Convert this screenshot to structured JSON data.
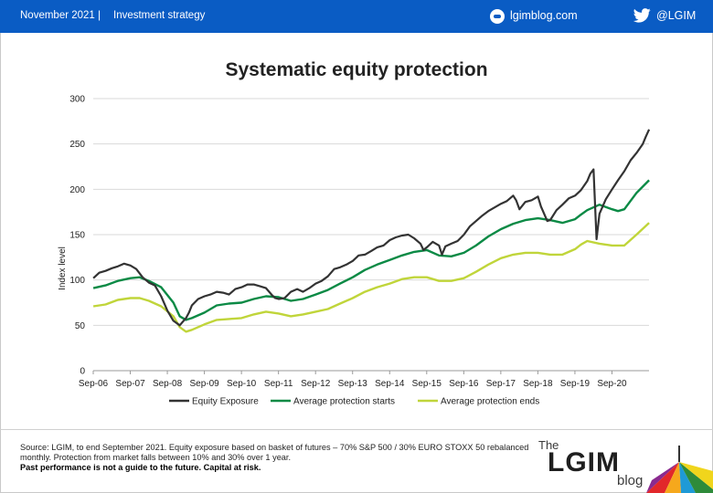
{
  "header": {
    "date": "November 2021",
    "separator": "|",
    "category": "Investment strategy",
    "site": "lgimblog.com",
    "twitter": "@LGIM",
    "background_color": "#0a5cc4",
    "site_icon": "globe-icon",
    "twitter_icon": "twitter-bird-icon"
  },
  "chart_data": {
    "type": "line",
    "title": "Systematic equity protection",
    "xlabel": "",
    "ylabel": "Index level",
    "ylim": [
      0,
      300
    ],
    "yticks": [
      0,
      50,
      100,
      150,
      200,
      250,
      300
    ],
    "xticks": [
      "Sep-06",
      "Sep-07",
      "Sep-08",
      "Sep-09",
      "Sep-10",
      "Sep-11",
      "Sep-12",
      "Sep-13",
      "Sep-14",
      "Sep-15",
      "Sep-16",
      "Sep-17",
      "Sep-18",
      "Sep-19",
      "Sep-20"
    ],
    "xrange": [
      2006.667,
      2021.667
    ],
    "grid": "horizontal",
    "legend_position": "bottom",
    "series": [
      {
        "name": "Equity Exposure",
        "color": "#333333",
        "x": [
          2006.67,
          2006.83,
          2007.0,
          2007.17,
          2007.33,
          2007.5,
          2007.67,
          2007.83,
          2008.0,
          2008.17,
          2008.33,
          2008.5,
          2008.67,
          2008.83,
          2009.0,
          2009.17,
          2009.25,
          2009.33,
          2009.5,
          2009.67,
          2009.83,
          2010.0,
          2010.17,
          2010.33,
          2010.5,
          2010.67,
          2010.83,
          2011.0,
          2011.17,
          2011.33,
          2011.5,
          2011.58,
          2011.67,
          2011.83,
          2012.0,
          2012.17,
          2012.33,
          2012.5,
          2012.67,
          2012.83,
          2013.0,
          2013.17,
          2013.33,
          2013.5,
          2013.67,
          2013.83,
          2014.0,
          2014.17,
          2014.33,
          2014.5,
          2014.67,
          2014.83,
          2015.0,
          2015.17,
          2015.33,
          2015.5,
          2015.58,
          2015.67,
          2015.83,
          2016.0,
          2016.08,
          2016.17,
          2016.33,
          2016.5,
          2016.67,
          2016.83,
          2017.0,
          2017.17,
          2017.33,
          2017.5,
          2017.67,
          2017.83,
          2018.0,
          2018.08,
          2018.17,
          2018.33,
          2018.5,
          2018.67,
          2018.75,
          2018.92,
          2019.0,
          2019.17,
          2019.33,
          2019.5,
          2019.67,
          2019.83,
          2020.0,
          2020.08,
          2020.17,
          2020.25,
          2020.33,
          2020.5,
          2020.67,
          2020.83,
          2021.0,
          2021.17,
          2021.33,
          2021.5,
          2021.58,
          2021.67
        ],
        "values": [
          102,
          108,
          110,
          113,
          115,
          118,
          116,
          112,
          103,
          97,
          94,
          82,
          66,
          55,
          50,
          58,
          64,
          72,
          79,
          82,
          84,
          87,
          86,
          84,
          90,
          92,
          95,
          95,
          93,
          91,
          83,
          80,
          79,
          80,
          87,
          90,
          87,
          91,
          96,
          99,
          104,
          112,
          114,
          117,
          121,
          127,
          128,
          132,
          136,
          138,
          144,
          147,
          149,
          150,
          146,
          140,
          133,
          136,
          142,
          138,
          128,
          137,
          140,
          143,
          150,
          159,
          165,
          171,
          176,
          180,
          184,
          187,
          193,
          188,
          178,
          186,
          188,
          192,
          181,
          165,
          166,
          177,
          183,
          190,
          193,
          199,
          209,
          217,
          222,
          145,
          173,
          189,
          200,
          210,
          220,
          232,
          240,
          250,
          258,
          266
        ]
      },
      {
        "name": "Average protection starts",
        "color": "#0b8a45",
        "x": [
          2006.67,
          2007.0,
          2007.33,
          2007.67,
          2007.92,
          2008.17,
          2008.5,
          2008.83,
          2009.0,
          2009.17,
          2009.33,
          2009.67,
          2010.0,
          2010.33,
          2010.67,
          2011.0,
          2011.33,
          2011.67,
          2012.0,
          2012.33,
          2012.67,
          2013.0,
          2013.33,
          2013.67,
          2014.0,
          2014.33,
          2014.67,
          2015.0,
          2015.33,
          2015.67,
          2016.0,
          2016.33,
          2016.67,
          2017.0,
          2017.33,
          2017.67,
          2018.0,
          2018.33,
          2018.67,
          2019.0,
          2019.33,
          2019.67,
          2019.83,
          2020.0,
          2020.33,
          2020.67,
          2020.83,
          2021.0,
          2021.33,
          2021.67
        ],
        "values": [
          91,
          94,
          99,
          102,
          103,
          99,
          92,
          75,
          60,
          56,
          58,
          64,
          72,
          74,
          75,
          79,
          82,
          81,
          77,
          79,
          84,
          89,
          96,
          103,
          111,
          117,
          122,
          127,
          131,
          133,
          127,
          126,
          130,
          138,
          148,
          156,
          162,
          166,
          168,
          166,
          163,
          167,
          172,
          177,
          183,
          178,
          176,
          178,
          196,
          210
        ]
      },
      {
        "name": "Average protection ends",
        "color": "#c0d53a",
        "x": [
          2006.67,
          2007.0,
          2007.33,
          2007.67,
          2007.92,
          2008.17,
          2008.5,
          2008.83,
          2009.0,
          2009.17,
          2009.33,
          2009.67,
          2010.0,
          2010.33,
          2010.67,
          2011.0,
          2011.33,
          2011.67,
          2012.0,
          2012.33,
          2012.67,
          2013.0,
          2013.33,
          2013.67,
          2014.0,
          2014.33,
          2014.67,
          2015.0,
          2015.33,
          2015.67,
          2016.0,
          2016.33,
          2016.67,
          2017.0,
          2017.33,
          2017.67,
          2018.0,
          2018.33,
          2018.67,
          2019.0,
          2019.33,
          2019.67,
          2019.83,
          2020.0,
          2020.33,
          2020.67,
          2020.83,
          2021.0,
          2021.33,
          2021.67
        ],
        "values": [
          71,
          73,
          78,
          80,
          80,
          77,
          71,
          60,
          48,
          43,
          45,
          51,
          56,
          57,
          58,
          62,
          65,
          63,
          60,
          62,
          65,
          68,
          74,
          80,
          87,
          92,
          96,
          101,
          103,
          103,
          99,
          99,
          102,
          109,
          117,
          124,
          128,
          130,
          130,
          128,
          128,
          134,
          139,
          143,
          140,
          138,
          138,
          138,
          150,
          163
        ]
      }
    ]
  },
  "footer": {
    "source_line1": "Source: LGIM,  to end September 2021. Equity exposure based on basket of futures – 70% S&P 500 / 30% EURO STOXX  50 rebalanced",
    "source_line2": "monthly. Protection from market falls between 10% and 30% over 1 year.",
    "disclaimer": "Past performance is not a guide to the future. Capital at risk.",
    "logo_the": "The",
    "logo_main": "LGIM",
    "logo_blog": "blog"
  }
}
